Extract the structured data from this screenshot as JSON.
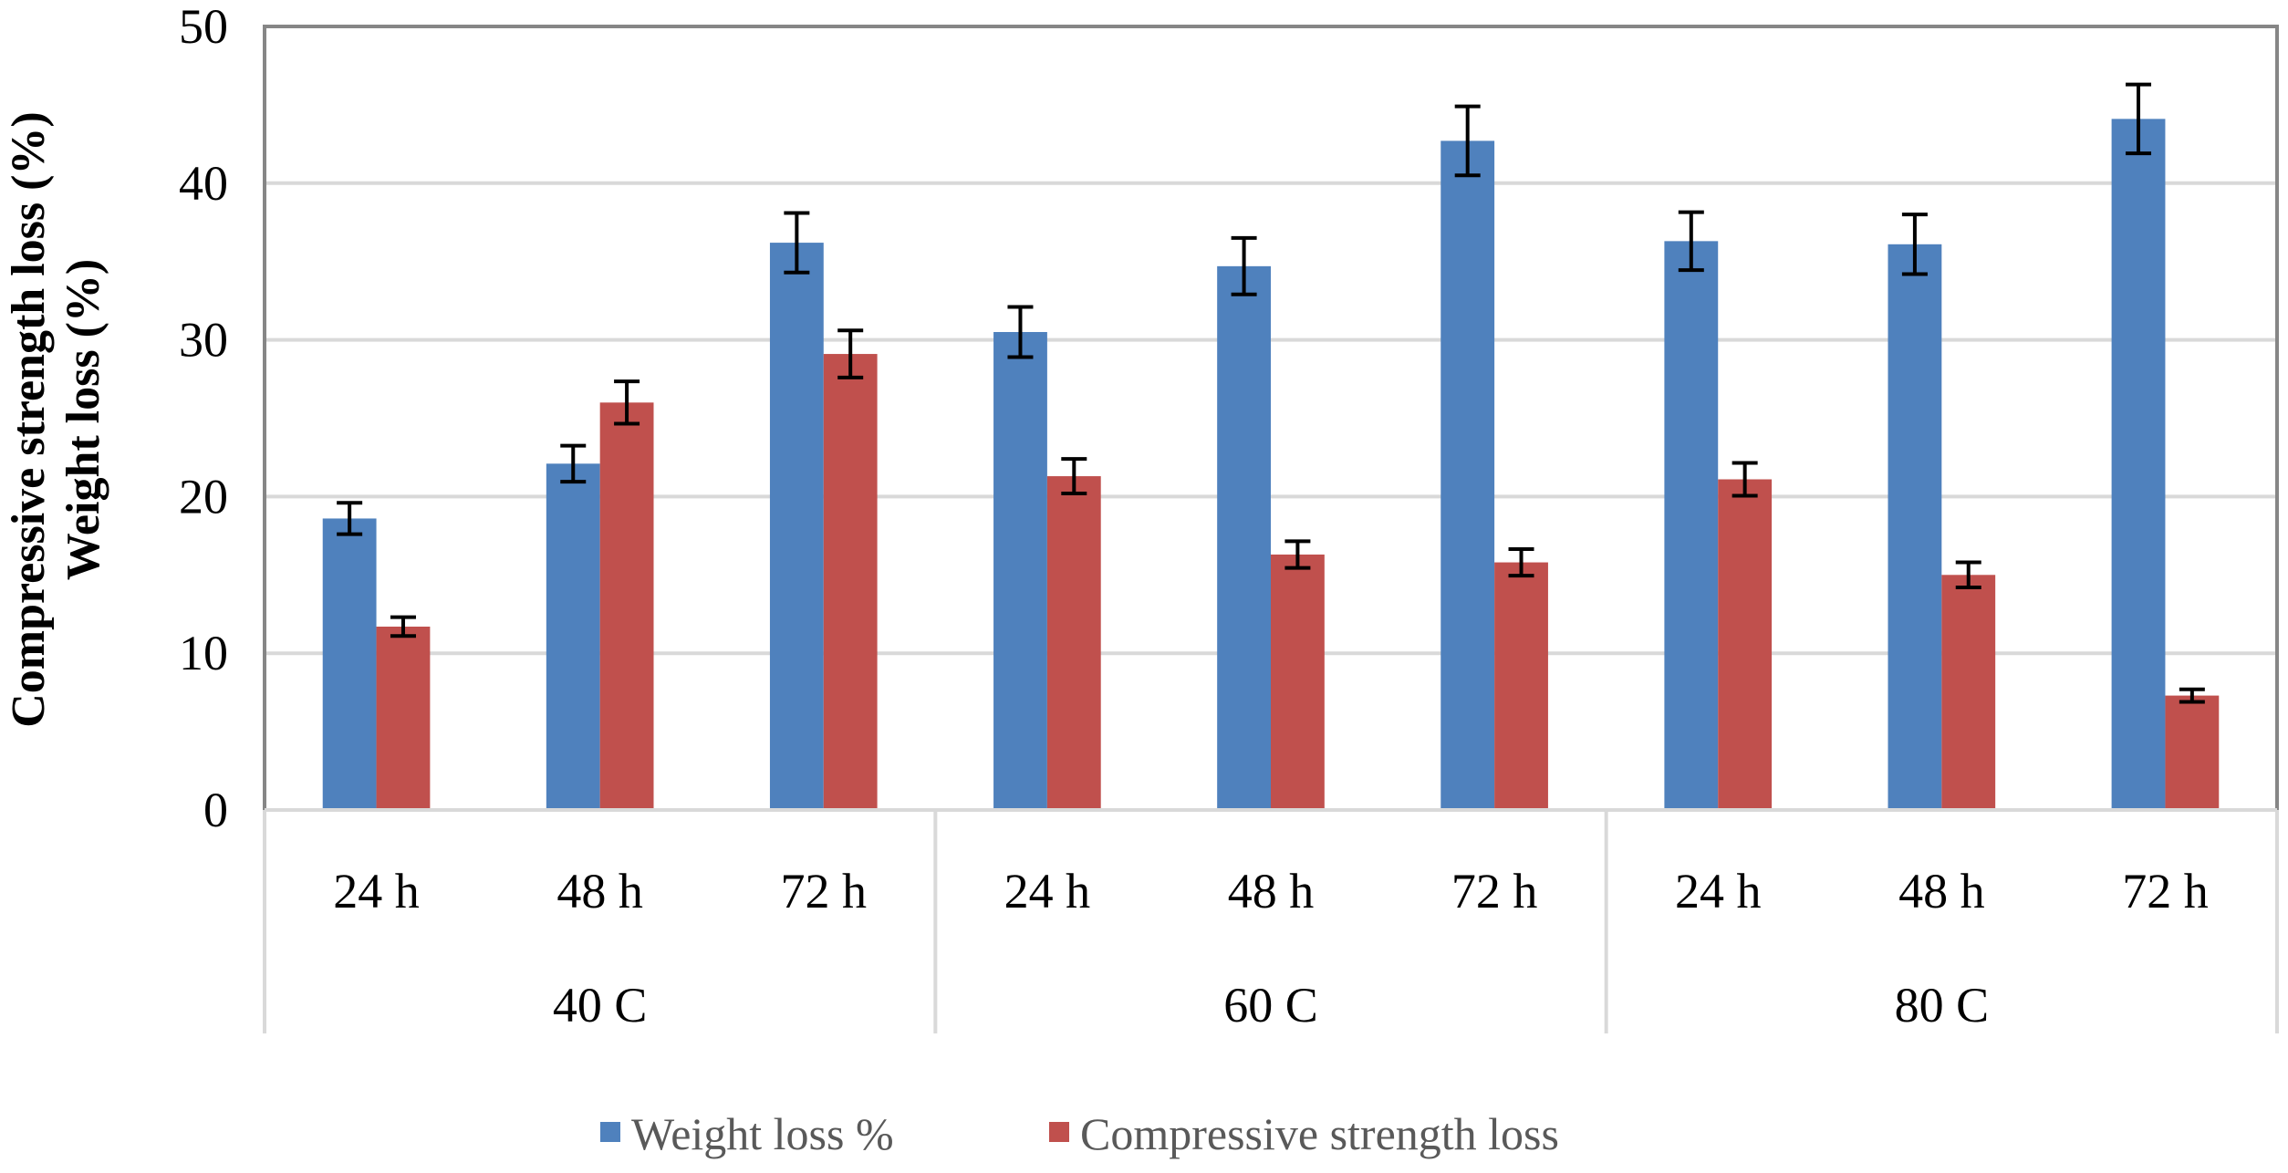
{
  "chart_data": {
    "type": "bar",
    "ylabel": [
      "Compressive strength loss (%)",
      "Weight loss (%)"
    ],
    "ylim": [
      0,
      50
    ],
    "yticks": [
      0,
      10,
      20,
      30,
      40,
      50
    ],
    "grid": true,
    "legend_position": "bottom",
    "groups": [
      {
        "label": "40 C",
        "categories": [
          "24 h",
          "48 h",
          "72 h"
        ]
      },
      {
        "label": "60 C",
        "categories": [
          "24 h",
          "48 h",
          "72 h"
        ]
      },
      {
        "label": "80 C",
        "categories": [
          "24 h",
          "48 h",
          "72 h"
        ]
      }
    ],
    "series": [
      {
        "name": "Weight loss %",
        "color": "#4f81bd",
        "values": [
          18.6,
          22.1,
          36.2,
          30.5,
          34.7,
          42.7,
          36.3,
          36.1,
          44.1
        ],
        "errors": [
          1.0,
          1.15,
          1.9,
          1.6,
          1.8,
          2.2,
          1.85,
          1.9,
          2.2
        ]
      },
      {
        "name": "Compressive strength loss",
        "color": "#c0504d",
        "values": [
          11.7,
          26.0,
          29.1,
          21.3,
          16.3,
          15.8,
          21.1,
          15.0,
          7.3
        ],
        "errors": [
          0.6,
          1.35,
          1.5,
          1.1,
          0.85,
          0.85,
          1.05,
          0.8,
          0.4
        ]
      }
    ]
  }
}
